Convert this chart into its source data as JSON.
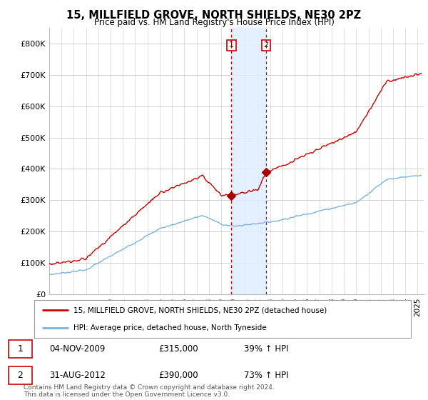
{
  "title": "15, MILLFIELD GROVE, NORTH SHIELDS, NE30 2PZ",
  "subtitle": "Price paid vs. HM Land Registry's House Price Index (HPI)",
  "legend_line1": "15, MILLFIELD GROVE, NORTH SHIELDS, NE30 2PZ (detached house)",
  "legend_line2": "HPI: Average price, detached house, North Tyneside",
  "footnote": "Contains HM Land Registry data © Crown copyright and database right 2024.\nThis data is licensed under the Open Government Licence v3.0.",
  "transaction1_label": "1",
  "transaction1_date": "04-NOV-2009",
  "transaction1_price": "£315,000",
  "transaction1_hpi": "39% ↑ HPI",
  "transaction2_label": "2",
  "transaction2_date": "31-AUG-2012",
  "transaction2_price": "£390,000",
  "transaction2_hpi": "73% ↑ HPI",
  "hpi_color": "#7ab4d8",
  "price_color": "#cc0000",
  "dot_color": "#aa0000",
  "shading_color": "#ddeeff",
  "vline_color": "#cc0000",
  "ylim": [
    0,
    850000
  ],
  "yticks": [
    0,
    100000,
    200000,
    300000,
    400000,
    500000,
    600000,
    700000,
    800000
  ],
  "ytick_labels": [
    "£0",
    "£100K",
    "£200K",
    "£300K",
    "£400K",
    "£500K",
    "£600K",
    "£700K",
    "£800K"
  ],
  "xlim_start": 1995.0,
  "xlim_end": 2025.5,
  "transaction1_x": 2009.84,
  "transaction1_y": 315000,
  "transaction2_x": 2012.66,
  "transaction2_y": 390000,
  "shade_x1": 2009.84,
  "shade_x2": 2012.66
}
